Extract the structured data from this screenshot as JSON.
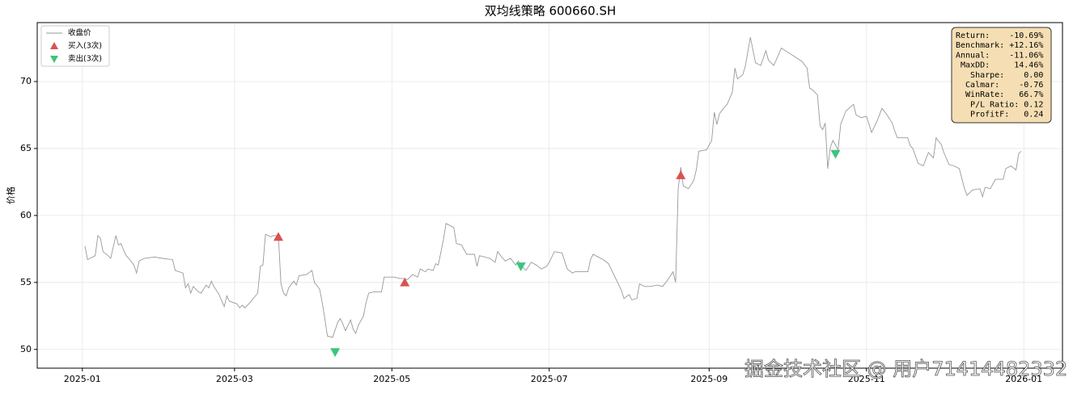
{
  "chart_data": {
    "type": "line",
    "title": "双均线策略  600660.SH",
    "y_label": "价格",
    "xlim": [
      -17.5,
      380
    ],
    "ylim": [
      48.6,
      74.4
    ],
    "xticks": [
      {
        "value": 0,
        "label": "2025-01"
      },
      {
        "value": 59,
        "label": "2025-03"
      },
      {
        "value": 120,
        "label": "2025-05"
      },
      {
        "value": 181,
        "label": "2025-07"
      },
      {
        "value": 243,
        "label": "2025-09"
      },
      {
        "value": 304,
        "label": "2025-11"
      },
      {
        "value": 365,
        "label": "2026-01"
      }
    ],
    "yticks": [
      50,
      55,
      60,
      65,
      70
    ],
    "grid": true,
    "legend": "upper left",
    "series": [
      {
        "name": "收盘价",
        "color": "#999999",
        "marker": "none",
        "x": [
          1,
          2,
          3,
          5,
          6,
          7,
          8,
          10,
          11,
          13,
          14,
          15,
          16,
          17,
          18,
          20,
          21,
          22,
          24,
          28,
          31,
          35,
          36,
          39,
          40,
          41,
          42,
          43,
          45,
          46,
          48,
          49,
          50,
          51,
          53,
          55,
          56,
          57,
          60,
          61,
          62,
          63,
          65,
          68,
          69,
          70,
          71,
          73,
          74,
          76,
          77,
          78,
          79,
          80,
          82,
          83,
          84,
          87,
          89,
          90,
          92,
          93,
          94,
          95,
          97,
          99,
          100,
          101,
          102,
          104,
          105,
          106,
          107,
          109,
          110,
          111,
          113,
          116,
          117,
          121,
          123,
          125,
          126,
          128,
          130,
          131,
          133,
          134,
          136,
          137,
          138,
          140,
          141,
          144,
          145,
          147,
          149,
          152,
          153,
          154,
          158,
          160,
          161,
          163,
          164,
          166,
          168,
          169,
          170,
          172,
          174,
          176,
          178,
          180,
          181,
          183,
          186,
          188,
          190,
          191,
          194,
          196,
          197,
          198,
          200,
          202,
          204,
          205,
          207,
          209,
          210,
          212,
          213,
          215,
          216,
          218,
          220,
          223,
          225,
          227,
          229,
          230,
          231,
          232,
          233,
          235,
          237,
          238,
          239,
          242,
          244,
          245,
          246,
          247,
          249,
          250,
          252,
          253,
          254,
          256,
          257,
          259,
          261,
          263,
          265,
          266,
          268,
          269,
          271,
          279,
          281,
          282,
          283,
          285,
          286,
          287,
          288,
          289,
          290,
          291,
          293,
          294,
          296,
          299,
          300,
          302,
          304,
          306,
          308,
          310,
          312,
          314,
          315,
          316,
          320,
          321,
          322,
          324,
          326,
          328,
          330,
          331,
          333,
          334,
          336,
          338,
          340,
          342,
          343,
          345,
          348,
          349,
          350,
          352,
          354,
          357,
          358,
          360,
          362,
          363,
          364
        ],
        "values": [
          57.7,
          56.7,
          56.8,
          57.0,
          58.5,
          58.3,
          57.3,
          57.0,
          56.8,
          58.5,
          57.8,
          57.9,
          57.4,
          57.0,
          56.8,
          56.3,
          55.7,
          56.6,
          56.8,
          56.9,
          56.8,
          56.7,
          55.9,
          55.7,
          54.6,
          54.9,
          54.2,
          54.7,
          54.3,
          54.2,
          54.8,
          54.6,
          55.1,
          54.7,
          54.1,
          53.2,
          54.0,
          53.6,
          53.4,
          53.1,
          53.3,
          53.1,
          53.5,
          54.2,
          56.2,
          56.3,
          58.6,
          58.4,
          58.5,
          58.5,
          54.9,
          54.2,
          54.0,
          54.6,
          55.1,
          54.8,
          55.5,
          55.6,
          55.9,
          55.0,
          54.5,
          53.5,
          52.3,
          51.0,
          50.9,
          52.0,
          52.3,
          51.9,
          51.4,
          52.2,
          51.5,
          51.2,
          51.8,
          52.5,
          53.5,
          54.2,
          54.3,
          54.3,
          55.4,
          55.4,
          55.3,
          55.3,
          55.2,
          55.6,
          55.4,
          56.0,
          55.8,
          56.0,
          55.9,
          56.4,
          56.3,
          58.2,
          59.4,
          59.1,
          57.9,
          57.8,
          57.1,
          57.1,
          56.2,
          57.0,
          56.8,
          56.5,
          57.3,
          56.8,
          56.6,
          56.8,
          56.3,
          56.6,
          56.3,
          55.9,
          56.5,
          56.3,
          56.0,
          56.2,
          56.5,
          57.3,
          57.2,
          56.0,
          55.7,
          55.8,
          55.8,
          55.8,
          56.7,
          57.1,
          56.9,
          56.7,
          56.4,
          56.0,
          55.2,
          54.4,
          53.8,
          54.1,
          53.7,
          53.8,
          54.9,
          54.7,
          54.7,
          54.8,
          54.7,
          55.2,
          55.8,
          55.0,
          62.0,
          63.6,
          62.2,
          62.0,
          62.6,
          63.4,
          64.8,
          64.9,
          65.6,
          67.7,
          66.8,
          67.6,
          68.1,
          68.3,
          69.2,
          71.0,
          70.2,
          70.5,
          71.1,
          73.3,
          71.4,
          71.2,
          72.3,
          71.6,
          71.2,
          71.6,
          72.5,
          71.5,
          71.0,
          69.5,
          69.4,
          69.0,
          66.7,
          66.4,
          66.9,
          63.5,
          65.1,
          65.6,
          64.9,
          66.8,
          67.8,
          68.3,
          67.5,
          67.3,
          67.4,
          66.2,
          67.0,
          68.0,
          67.5,
          66.9,
          66.3,
          65.8,
          65.8,
          65.2,
          65.0,
          63.9,
          63.7,
          64.7,
          64.3,
          65.8,
          65.3,
          64.7,
          63.8,
          63.7,
          63.5,
          62.0,
          61.5,
          61.9,
          62.0,
          61.4,
          62.1,
          62.0,
          62.7,
          62.7,
          63.5,
          63.7,
          63.4,
          64.6,
          64.8
        ]
      },
      {
        "name": "买入(3次)",
        "color": "#d9534f",
        "marker": "triangle-up",
        "x": [
          76,
          125,
          232
        ],
        "values": [
          58.4,
          55.0,
          63.0
        ]
      },
      {
        "name": "卖出(3次)",
        "color": "#3cc57c",
        "marker": "triangle-down",
        "x": [
          98,
          170,
          292
        ],
        "values": [
          49.8,
          56.2,
          64.6
        ]
      }
    ],
    "stats_box": [
      "Return:    -10.69%",
      "Benchmark: +12.16%",
      "Annual:    -11.06%",
      " MaxDD:     14.46%",
      "   Sharpe:    0.00",
      "  Calmar:    -0.76",
      "  WinRate:   66.7%",
      "   P/L Ratio: 0.12",
      "   ProfitF:   0.24"
    ],
    "watermark": "掘金技术社区 @ 用户71414482332"
  }
}
